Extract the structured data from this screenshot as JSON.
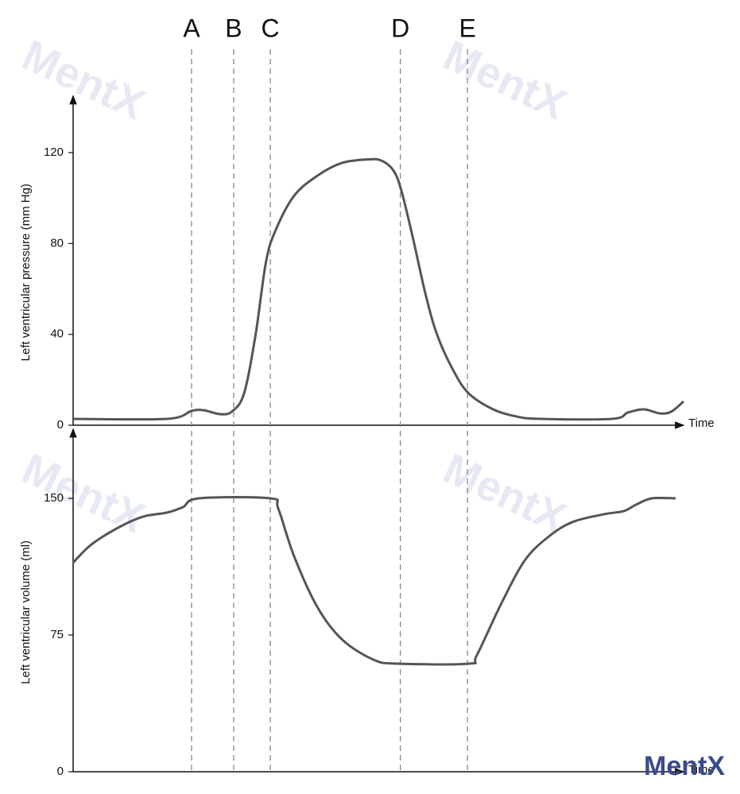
{
  "watermark": "MentX",
  "chart_data": [
    {
      "type": "line",
      "ylabel": "Left ventricular pressure (mm Hg)",
      "xlabel": "Time",
      "xlim": [
        0,
        100
      ],
      "ylim": [
        0,
        145
      ],
      "yticks": [
        0,
        40,
        80,
        120
      ],
      "annotations": [
        {
          "text": "A",
          "x": 19.4
        },
        {
          "text": "B",
          "x": 26.3
        },
        {
          "text": "C",
          "x": 32.3
        },
        {
          "text": "D",
          "x": 53.6
        },
        {
          "text": "E",
          "x": 64.6
        }
      ],
      "series": [
        {
          "color": "#555555",
          "x": [
            0,
            15.4,
            19.4,
            21.4,
            24,
            26,
            28,
            29.9,
            31.6,
            33.2,
            36.2,
            40.1,
            44.1,
            48.2,
            50.5,
            52.5,
            53.8,
            55.7,
            57.7,
            59.6,
            62.2,
            64.8,
            68.8,
            72.7,
            76.6,
            88.3,
            90.9,
            93.5,
            96.1,
            98,
            100
          ],
          "values": [
            2.8,
            2.8,
            6.3,
            6.6,
            4.9,
            6,
            14,
            40,
            72,
            86,
            101,
            110,
            115.5,
            117,
            116.5,
            112,
            103,
            82,
            58,
            40,
            24.5,
            14,
            7,
            3.8,
            2.8,
            2.8,
            5.6,
            7,
            5.2,
            6,
            10.5
          ]
        }
      ]
    },
    {
      "type": "line",
      "ylabel": "Left ventricular volume (ml)",
      "xlabel": "Time",
      "xlim": [
        0,
        100
      ],
      "ylim": [
        0,
        188
      ],
      "yticks": [
        0,
        75,
        150
      ],
      "series": [
        {
          "color": "#555555",
          "x": [
            0,
            3,
            7.6,
            11.5,
            15.4,
            18,
            20.6,
            32.3,
            33.6,
            36.2,
            40.1,
            44.1,
            49.2,
            53.1,
            64.8,
            66.1,
            70.1,
            74,
            77.9,
            81.8,
            87,
            90.2,
            92.2,
            94.8,
            98.7
          ],
          "values": [
            114.7,
            124.7,
            134.3,
            140,
            142.2,
            145.2,
            150,
            150,
            144.4,
            118.2,
            89.8,
            72.4,
            61.5,
            59.3,
            59.3,
            63.7,
            92,
            116,
            129,
            137,
            141.3,
            143,
            146.5,
            150,
            150
          ]
        }
      ]
    }
  ]
}
